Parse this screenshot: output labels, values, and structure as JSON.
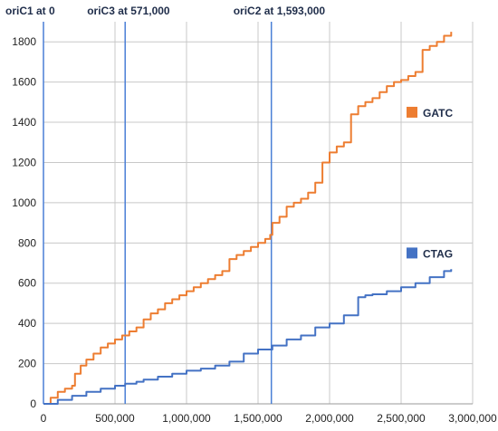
{
  "chart_data": {
    "type": "line",
    "title": "",
    "xlabel": "",
    "ylabel": "",
    "xlim": [
      0,
      3000000
    ],
    "ylim": [
      0,
      1900
    ],
    "x_ticks": [
      0,
      500000,
      1000000,
      1500000,
      2000000,
      2500000,
      3000000
    ],
    "x_tick_labels": [
      "0",
      "500,000",
      "1,000,000",
      "1,500,000",
      "2,000,000",
      "2,500,000",
      "3,000,000"
    ],
    "y_ticks": [
      0,
      200,
      400,
      600,
      800,
      1000,
      1200,
      1400,
      1600,
      1800
    ],
    "y_tick_labels": [
      "0",
      "200",
      "400",
      "600",
      "800",
      "1000",
      "1200",
      "1400",
      "1600",
      "1800"
    ],
    "grid": true,
    "legend_position": "right",
    "series": [
      {
        "name": "GATC",
        "color": "#ed7d31",
        "x": [
          0,
          50000,
          100000,
          150000,
          200000,
          220000,
          260000,
          300000,
          350000,
          400000,
          450000,
          500000,
          550000,
          600000,
          650000,
          700000,
          750000,
          800000,
          850000,
          900000,
          950000,
          1000000,
          1050000,
          1100000,
          1150000,
          1200000,
          1250000,
          1300000,
          1350000,
          1400000,
          1450000,
          1500000,
          1550000,
          1585000,
          1600000,
          1650000,
          1700000,
          1750000,
          1800000,
          1850000,
          1900000,
          1950000,
          2000000,
          2050000,
          2100000,
          2150000,
          2200000,
          2250000,
          2300000,
          2350000,
          2400000,
          2450000,
          2500000,
          2550000,
          2600000,
          2650000,
          2700000,
          2750000,
          2800000,
          2850000
        ],
        "y": [
          0,
          30,
          60,
          75,
          90,
          150,
          190,
          220,
          250,
          280,
          300,
          320,
          340,
          360,
          380,
          420,
          450,
          470,
          500,
          520,
          540,
          560,
          580,
          600,
          620,
          640,
          660,
          720,
          740,
          760,
          780,
          800,
          820,
          840,
          900,
          930,
          980,
          1000,
          1020,
          1050,
          1100,
          1200,
          1250,
          1280,
          1300,
          1440,
          1480,
          1500,
          1520,
          1550,
          1580,
          1600,
          1610,
          1630,
          1650,
          1760,
          1780,
          1800,
          1830,
          1850
        ]
      },
      {
        "name": "CTAG",
        "color": "#4472c4",
        "x": [
          0,
          100000,
          200000,
          300000,
          400000,
          500000,
          571000,
          650000,
          700000,
          800000,
          900000,
          1000000,
          1100000,
          1200000,
          1300000,
          1400000,
          1500000,
          1600000,
          1700000,
          1800000,
          1900000,
          2000000,
          2100000,
          2200000,
          2250000,
          2300000,
          2400000,
          2500000,
          2600000,
          2700000,
          2800000,
          2850000
        ],
        "y": [
          0,
          20,
          40,
          60,
          75,
          90,
          100,
          110,
          120,
          135,
          150,
          165,
          175,
          190,
          210,
          250,
          270,
          290,
          320,
          340,
          380,
          400,
          440,
          530,
          540,
          545,
          560,
          580,
          600,
          630,
          660,
          670
        ]
      }
    ],
    "annotations": [
      {
        "text": "oriC1 at 0",
        "x": 0
      },
      {
        "text": "oriC3 at 571,000",
        "x": 571000
      },
      {
        "text": "oriC2 at 1,593,000",
        "x": 1593000
      }
    ]
  }
}
